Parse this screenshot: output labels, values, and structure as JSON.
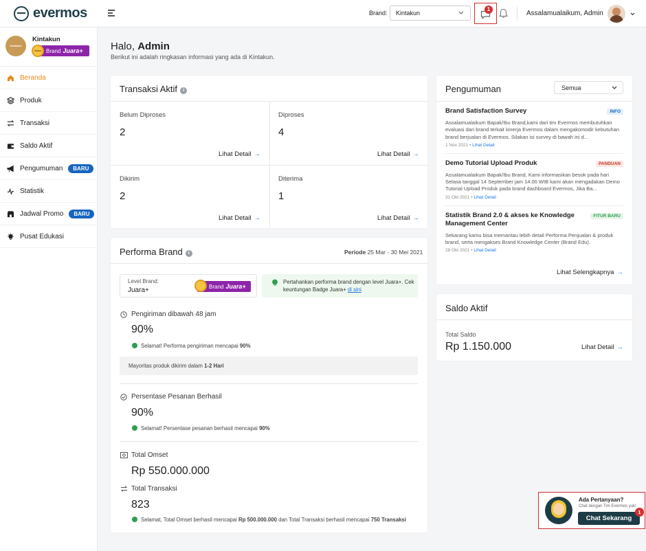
{
  "header": {
    "logo_text": "evermos",
    "brand_label": "Brand:",
    "brand_select": "Kintakun",
    "notif_count": "1",
    "greeting": "Assalamualaikum, Admin"
  },
  "sidebar": {
    "brand_name": "Kintakun",
    "brand_logo_text": "Kintakun",
    "badge_text": "Brand",
    "badge_level": "Juara+",
    "badge_medal": "Juara",
    "items": [
      {
        "label": "Beranda",
        "icon": "home-icon"
      },
      {
        "label": "Produk",
        "icon": "layers-icon"
      },
      {
        "label": "Transaksi",
        "icon": "swap-icon"
      },
      {
        "label": "Saldo Aktif",
        "icon": "wallet-icon"
      },
      {
        "label": "Pengumuman",
        "icon": "megaphone-icon",
        "badge": "BARU"
      },
      {
        "label": "Statistik",
        "icon": "chart-line-icon"
      },
      {
        "label": "Jadwal Promo",
        "icon": "store-icon",
        "badge": "BARU"
      },
      {
        "label": "Pusat Edukasi",
        "icon": "bulb-icon"
      }
    ]
  },
  "welcome": {
    "greeting_prefix": "Halo,",
    "name": "Admin",
    "subtitle": "Berikut ini adalah ringkasan informasi yang ada di Kintakun."
  },
  "transaksi": {
    "title": "Transaksi Aktif",
    "cells": [
      {
        "label": "Belum Diproses",
        "value": "2",
        "link": "Lihat Detail"
      },
      {
        "label": "Diproses",
        "value": "4",
        "link": "Lihat Detail"
      },
      {
        "label": "Dikirim",
        "value": "2",
        "link": "Lihat Detail"
      },
      {
        "label": "Diterima",
        "value": "1",
        "link": "Lihat Detail"
      }
    ]
  },
  "performa": {
    "title": "Performa Brand",
    "periode_label": "Periode",
    "periode_value": "25 Mar - 30 Mei 2021",
    "level_label": "Level Brand:",
    "level_value": "Juara+",
    "tip_text": "Pertahankan performa brand dengan level Juara+. Cek keuntungan Badge Juara+",
    "tip_link": "di sini",
    "pengiriman_title": "Pengiriman dibawah 48 jam",
    "pengiriman_value": "90%",
    "pengiriman_note_prefix": "Selamat! Performa pengiriman mencapai",
    "pengiriman_note_value": "90%",
    "mayoritas_prefix": "Mayoritas produk dikirim dalam",
    "mayoritas_value": "1-2 Hari",
    "persentase_title": "Persentase Pesanan Berhasil",
    "persentase_value": "90%",
    "persentase_note_prefix": "Selamat! Persentase pesanan berhasil mencapai",
    "persentase_note_value": "90%",
    "omset_title": "Total Omset",
    "omset_value": "Rp 550.000.000",
    "transaksi_title": "Total Transaksi",
    "transaksi_value": "823",
    "final_note_1": "Selamat, Total Omset berhasil mencapai",
    "final_note_2": "Rp 500.000.000",
    "final_note_3": "dan Total Transaksi berhasil mencapai",
    "final_note_4": "750 Transaksi"
  },
  "pengumuman": {
    "title": "Pengumuman",
    "filter": "Semua",
    "items": [
      {
        "title": "Brand Satisfaction Survey",
        "tag": "INFO",
        "body": "Assalamualaikum Bapak/Ibu Brand,kami dari tim Evermos membutuhkan evaluasi dari brand terkait kinerja Evermos dalam mengakomodir kebutuhan brand berjualan di Evermos. Silakan isi survey di bawah ini d...",
        "date": "1 Nov 2021",
        "link": "Lihat Detail"
      },
      {
        "title": "Demo Tutorial Upload Produk",
        "tag": "PANDUAN",
        "body": "Assalamualaikum Bapak/Ibu Brand, Kami informasikan besok pada hari Selasa tanggal 14  September jam 14.00 WIB kami akan mengadakan Demo Tutorial Upload Produk pada brand dashboard Evermos, Jika Ba...",
        "date": "31 Okt 2021",
        "link": "Lihat Detail"
      },
      {
        "title": "Statistik Brand 2.0 & akses ke Knowledge Management Center",
        "tag": "FITUR BARU",
        "body": "Sekarang kamu bisa memantau lebih detail Performa Penjualan & produk brand, serta mengakses Brand Knowledge Center (Brand Edu).",
        "date": "28 Okt 2021",
        "link": "Lihat Detail"
      }
    ],
    "more_link": "Lihat Selengkapnya"
  },
  "saldo": {
    "title": "Saldo Aktif",
    "label": "Total Saldo",
    "value": "Rp 1.150.000",
    "link": "Lihat Detail"
  },
  "chat": {
    "title": "Ada Pertanyaan?",
    "subtitle": "Chat dengan Tim Evermos yuk!",
    "button": "Chat Sekarang",
    "count": "1"
  },
  "colors": {
    "accent": "#e8891c",
    "primary_blue": "#1565c0",
    "link_blue": "#1a73e8",
    "highlight_red": "#d32f2f",
    "chat_button": "#1d3c45"
  }
}
